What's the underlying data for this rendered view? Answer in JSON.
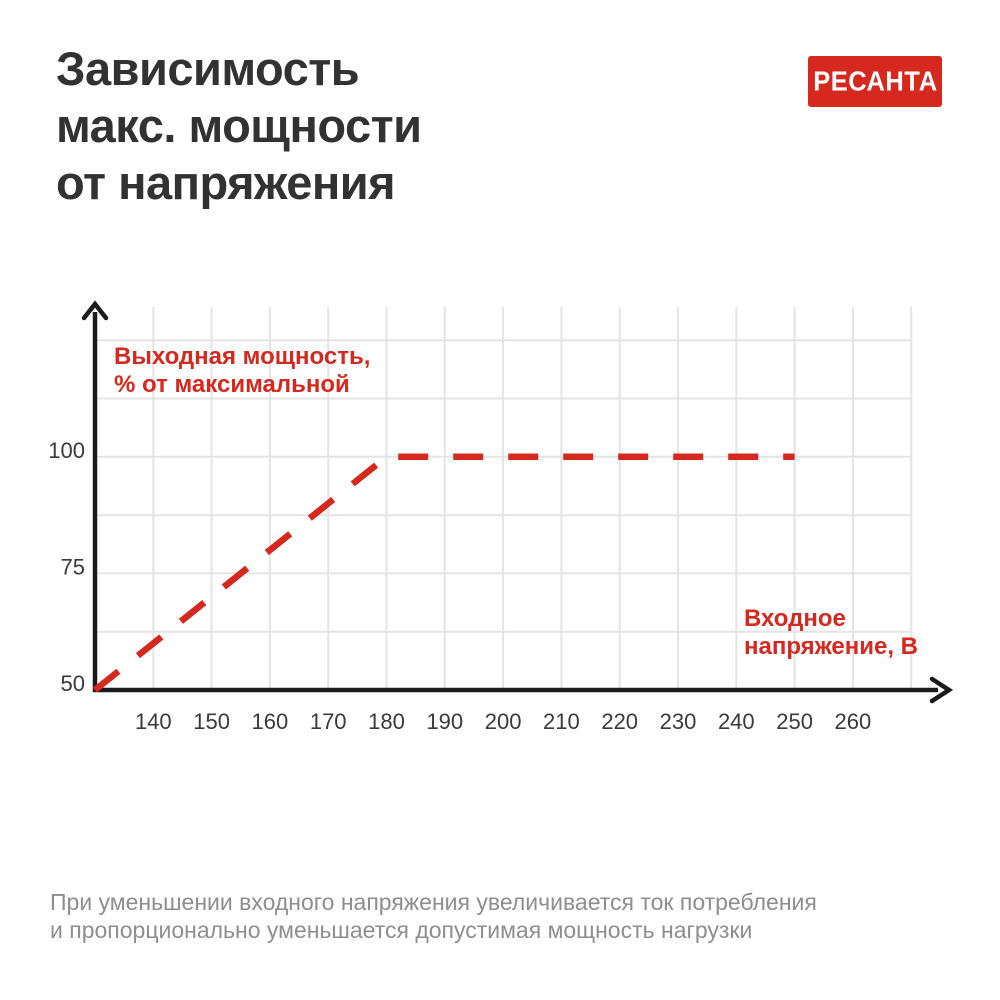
{
  "header": {
    "title": "Зависимость\nмакс. мощности\nот напряжения",
    "logo_text": "РЕСАНТА"
  },
  "footer": {
    "note": "При уменьшении входного напряжения увеличивается ток потребления\nи пропорционально уменьшается допустимая мощность нагрузки"
  },
  "colors": {
    "brand_red": "#D5281E",
    "title_dark": "#323232",
    "grid": "#E4E4E6",
    "axis": "#1A1A1A",
    "tick_text": "#3A3A3A",
    "footer_gray": "#8E8E8E",
    "logo_bg": "#D5281E",
    "logo_text_color": "#FFFFFF"
  },
  "chart_data": {
    "type": "line",
    "title": "Зависимость макс. мощности от напряжения",
    "x_axis_label": "Входное\nнапряжение, В",
    "y_axis_label": "Выходная мощность,\n% от максимальной",
    "x_ticks": [
      140,
      150,
      160,
      170,
      180,
      190,
      200,
      210,
      220,
      230,
      240,
      250,
      260
    ],
    "y_ticks": [
      100,
      75,
      50
    ],
    "x_range": [
      130,
      270
    ],
    "y_range": [
      50,
      125
    ],
    "x_grid_step": 10,
    "y_grid_step": 12.5,
    "grid": true,
    "legend": "none",
    "line_style": "dashed",
    "line_color": "#D5281E",
    "series": [
      {
        "name": "Выходная мощность, % от максимальной",
        "points": [
          {
            "x": 130,
            "y": 50
          },
          {
            "x": 180,
            "y": 100
          },
          {
            "x": 250,
            "y": 100
          }
        ]
      }
    ]
  }
}
